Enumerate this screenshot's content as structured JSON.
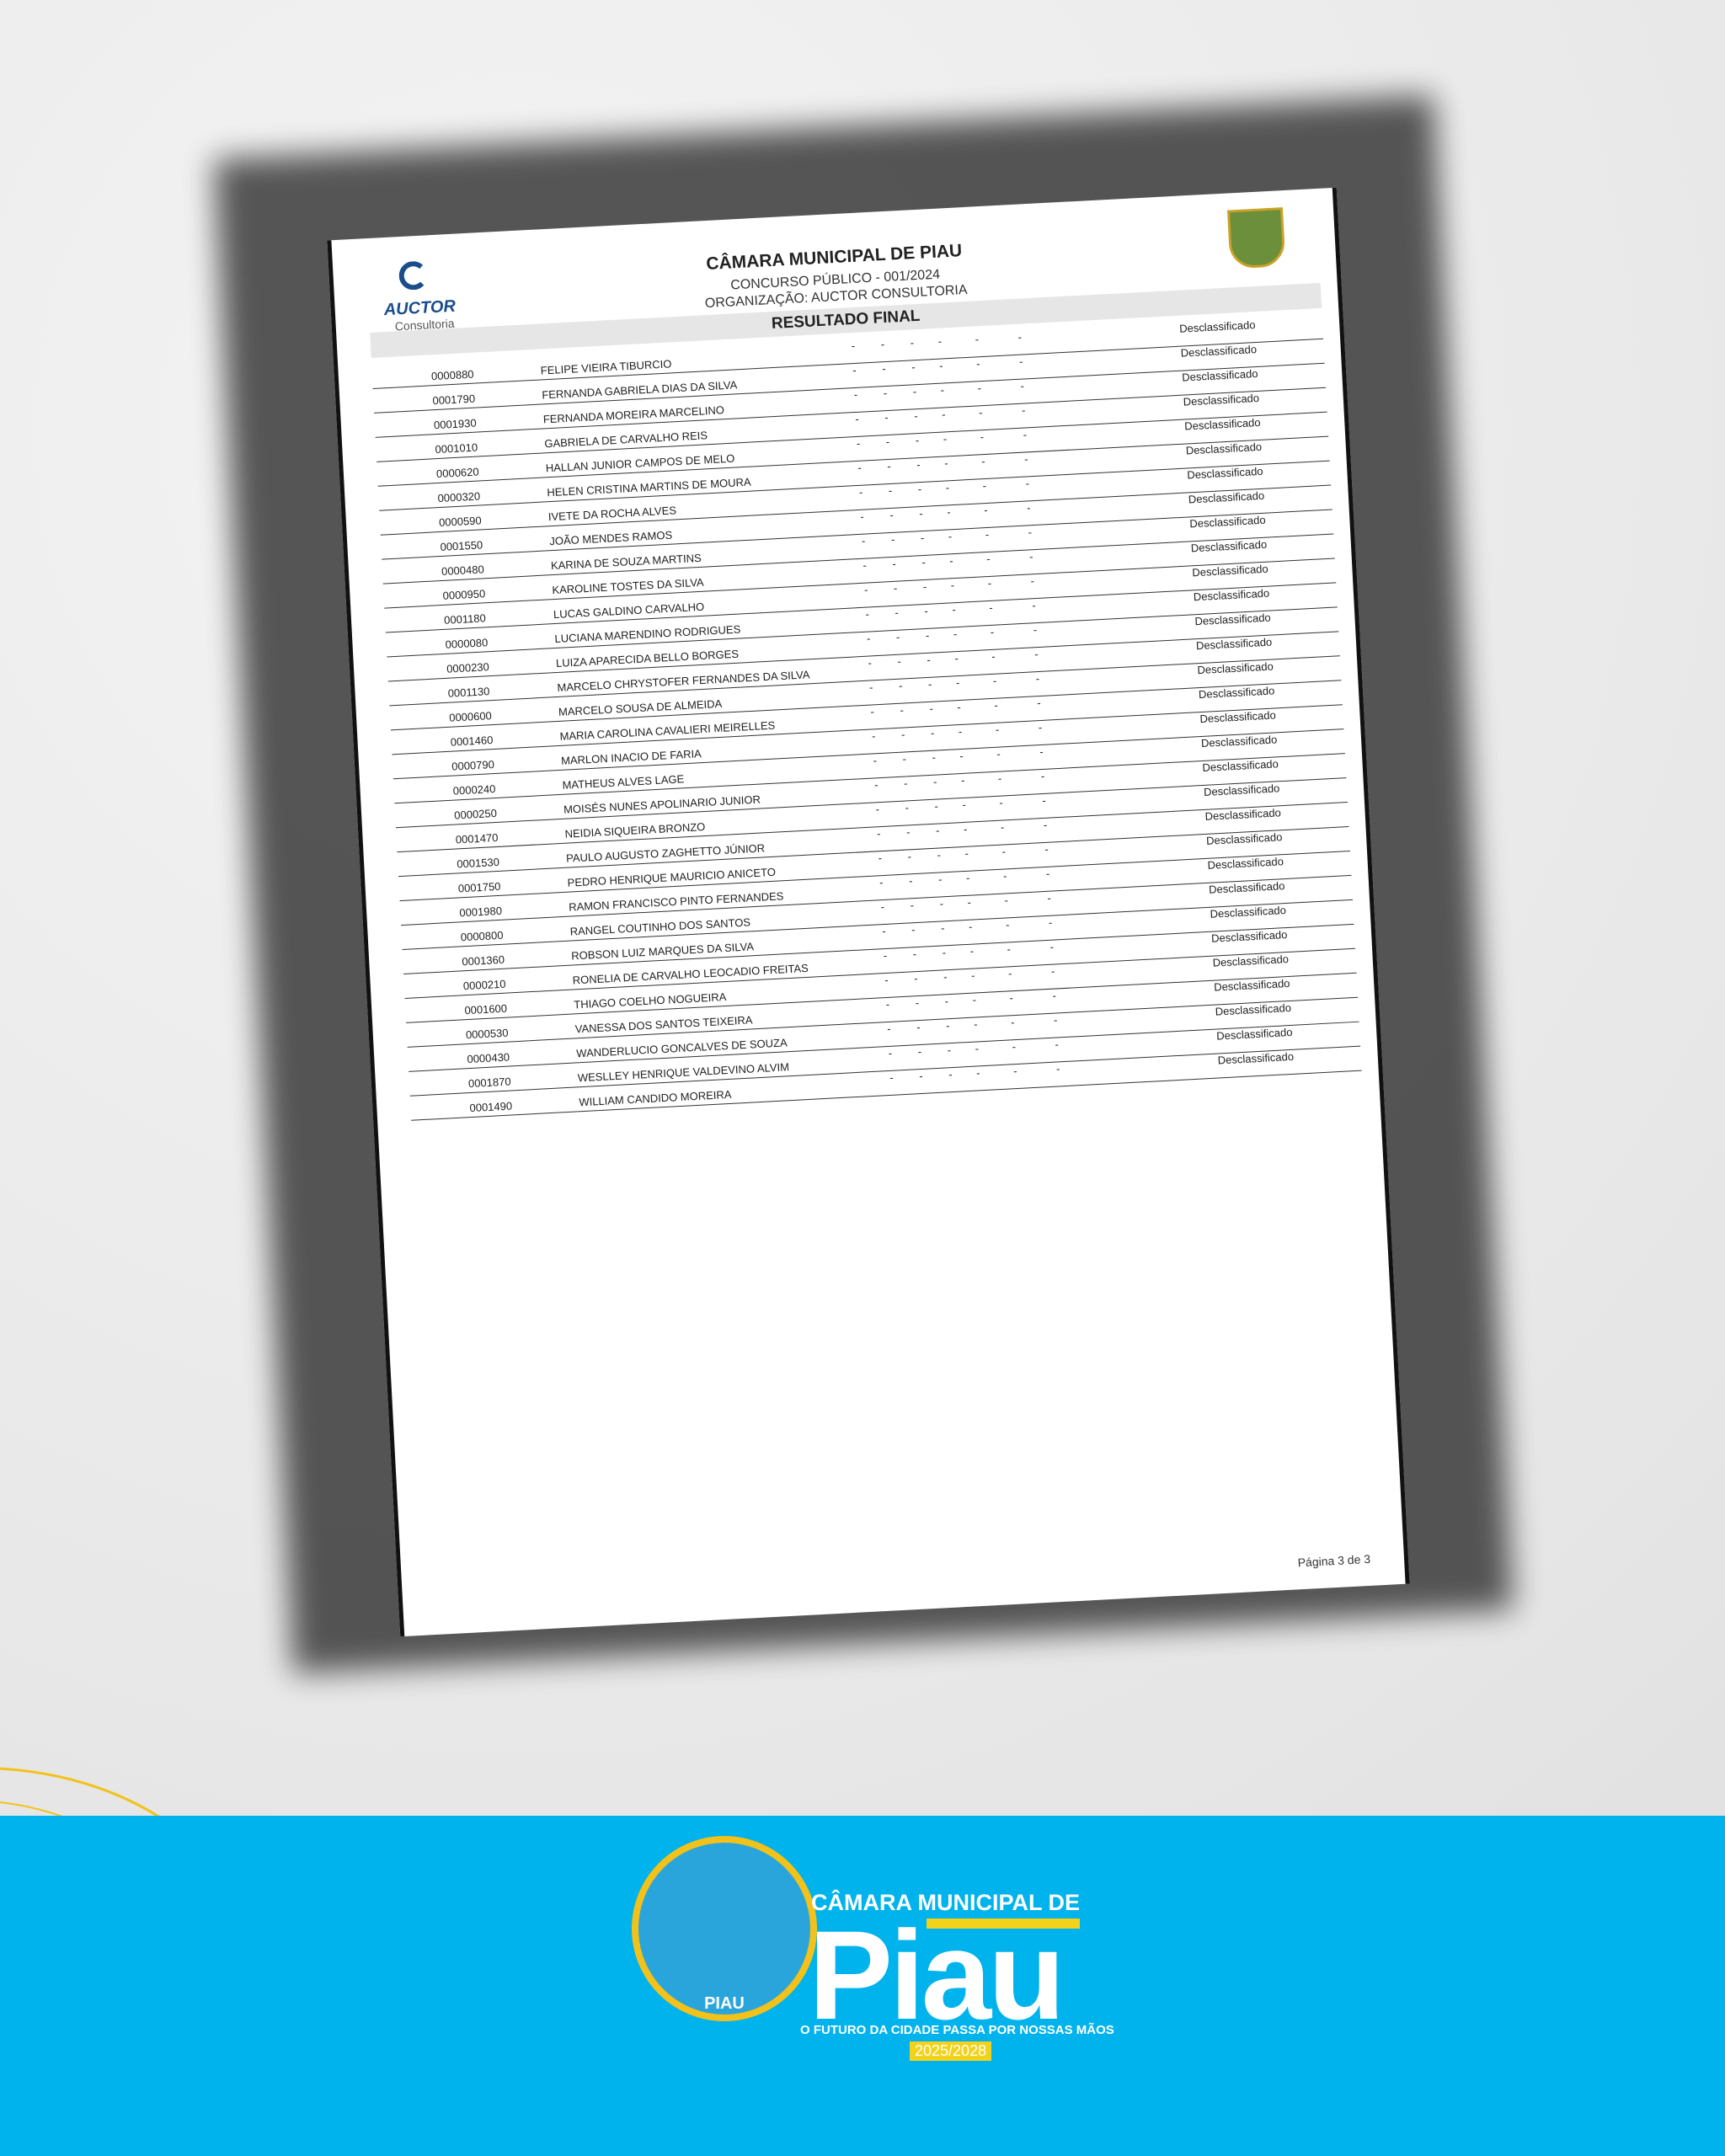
{
  "document": {
    "header": {
      "logo_name": "AUCTOR",
      "logo_sub": "Consultoria",
      "title": "CÂMARA MUNICIPAL DE PIAU",
      "subtitle": "CONCURSO PÚBLICO - 001/2024",
      "organization": "ORGANIZAÇÃO: AUCTOR CONSULTORIA",
      "section": "RESULTADO FINAL"
    },
    "table": {
      "rows": [
        {
          "code": "0000880",
          "name": "FELIPE VIEIRA TIBURCIO",
          "scores": [
            "-",
            "-",
            "-",
            "-",
            "-",
            "-"
          ],
          "status": "Desclassificado"
        },
        {
          "code": "0001790",
          "name": "FERNANDA GABRIELA DIAS DA SILVA",
          "scores": [
            "-",
            "-",
            "-",
            "-",
            "-",
            "-"
          ],
          "status": "Desclassificado"
        },
        {
          "code": "0001930",
          "name": "FERNANDA MOREIRA MARCELINO",
          "scores": [
            "-",
            "-",
            "-",
            "-",
            "-",
            "-"
          ],
          "status": "Desclassificado"
        },
        {
          "code": "0001010",
          "name": "GABRIELA DE CARVALHO REIS",
          "scores": [
            "-",
            "-",
            "-",
            "-",
            "-",
            "-"
          ],
          "status": "Desclassificado"
        },
        {
          "code": "0000620",
          "name": "HALLAN JUNIOR CAMPOS DE MELO",
          "scores": [
            "-",
            "-",
            "-",
            "-",
            "-",
            "-"
          ],
          "status": "Desclassificado"
        },
        {
          "code": "0000320",
          "name": "HELEN CRISTINA MARTINS DE MOURA",
          "scores": [
            "-",
            "-",
            "-",
            "-",
            "-",
            "-"
          ],
          "status": "Desclassificado"
        },
        {
          "code": "0000590",
          "name": "IVETE DA ROCHA ALVES",
          "scores": [
            "-",
            "-",
            "-",
            "-",
            "-",
            "-"
          ],
          "status": "Desclassificado"
        },
        {
          "code": "0001550",
          "name": "JOÃO MENDES RAMOS",
          "scores": [
            "-",
            "-",
            "-",
            "-",
            "-",
            "-"
          ],
          "status": "Desclassificado"
        },
        {
          "code": "0000480",
          "name": "KARINA DE SOUZA MARTINS",
          "scores": [
            "-",
            "-",
            "-",
            "-",
            "-",
            "-"
          ],
          "status": "Desclassificado"
        },
        {
          "code": "0000950",
          "name": "KAROLINE TOSTES DA SILVA",
          "scores": [
            "-",
            "-",
            "-",
            "-",
            "-",
            "-"
          ],
          "status": "Desclassificado"
        },
        {
          "code": "0001180",
          "name": "LUCAS GALDINO CARVALHO",
          "scores": [
            "-",
            "-",
            "-",
            "-",
            "-",
            "-"
          ],
          "status": "Desclassificado"
        },
        {
          "code": "0000080",
          "name": "LUCIANA MARENDINO RODRIGUES",
          "scores": [
            "-",
            "-",
            "-",
            "-",
            "-",
            "-"
          ],
          "status": "Desclassificado"
        },
        {
          "code": "0000230",
          "name": "LUIZA APARECIDA BELLO BORGES",
          "scores": [
            "-",
            "-",
            "-",
            "-",
            "-",
            "-"
          ],
          "status": "Desclassificado"
        },
        {
          "code": "0001130",
          "name": "MARCELO CHRYSTOFER FERNANDES DA SILVA",
          "scores": [
            "-",
            "-",
            "-",
            "-",
            "-",
            "-"
          ],
          "status": "Desclassificado"
        },
        {
          "code": "0000600",
          "name": "MARCELO SOUSA DE ALMEIDA",
          "scores": [
            "-",
            "-",
            "-",
            "-",
            "-",
            "-"
          ],
          "status": "Desclassificado"
        },
        {
          "code": "0001460",
          "name": "MARIA CAROLINA CAVALIERI MEIRELLES",
          "scores": [
            "-",
            "-",
            "-",
            "-",
            "-",
            "-"
          ],
          "status": "Desclassificado"
        },
        {
          "code": "0000790",
          "name": "MARLON INACIO DE FARIA",
          "scores": [
            "-",
            "-",
            "-",
            "-",
            "-",
            "-"
          ],
          "status": "Desclassificado"
        },
        {
          "code": "0000240",
          "name": "MATHEUS ALVES LAGE",
          "scores": [
            "-",
            "-",
            "-",
            "-",
            "-",
            "-"
          ],
          "status": "Desclassificado"
        },
        {
          "code": "0000250",
          "name": "MOISÉS NUNES APOLINARIO JUNIOR",
          "scores": [
            "-",
            "-",
            "-",
            "-",
            "-",
            "-"
          ],
          "status": "Desclassificado"
        },
        {
          "code": "0001470",
          "name": "NEIDIA SIQUEIRA BRONZO",
          "scores": [
            "-",
            "-",
            "-",
            "-",
            "-",
            "-"
          ],
          "status": "Desclassificado"
        },
        {
          "code": "0001530",
          "name": "PAULO AUGUSTO ZAGHETTO JÚNIOR",
          "scores": [
            "-",
            "-",
            "-",
            "-",
            "-",
            "-"
          ],
          "status": "Desclassificado"
        },
        {
          "code": "0001750",
          "name": "PEDRO HENRIQUE MAURICIO ANICETO",
          "scores": [
            "-",
            "-",
            "-",
            "-",
            "-",
            "-"
          ],
          "status": "Desclassificado"
        },
        {
          "code": "0001980",
          "name": "RAMON FRANCISCO PINTO FERNANDES",
          "scores": [
            "-",
            "-",
            "-",
            "-",
            "-",
            "-"
          ],
          "status": "Desclassificado"
        },
        {
          "code": "0000800",
          "name": "RANGEL COUTINHO DOS SANTOS",
          "scores": [
            "-",
            "-",
            "-",
            "-",
            "-",
            "-"
          ],
          "status": "Desclassificado"
        },
        {
          "code": "0001360",
          "name": "ROBSON LUIZ MARQUES DA SILVA",
          "scores": [
            "-",
            "-",
            "-",
            "-",
            "-",
            "-"
          ],
          "status": "Desclassificado"
        },
        {
          "code": "0000210",
          "name": "RONELIA DE CARVALHO LEOCADIO FREITAS",
          "scores": [
            "-",
            "-",
            "-",
            "-",
            "-",
            "-"
          ],
          "status": "Desclassificado"
        },
        {
          "code": "0001600",
          "name": "THIAGO COELHO NOGUEIRA",
          "scores": [
            "-",
            "-",
            "-",
            "-",
            "-",
            "-"
          ],
          "status": "Desclassificado"
        },
        {
          "code": "0000530",
          "name": "VANESSA DOS SANTOS TEIXEIRA",
          "scores": [
            "-",
            "-",
            "-",
            "-",
            "-",
            "-"
          ],
          "status": "Desclassificado"
        },
        {
          "code": "0000430",
          "name": "WANDERLUCIO GONCALVES DE SOUZA",
          "scores": [
            "-",
            "-",
            "-",
            "-",
            "-",
            "-"
          ],
          "status": "Desclassificado"
        },
        {
          "code": "0001870",
          "name": "WESLLEY HENRIQUE VALDEVINO ALVIM",
          "scores": [
            "-",
            "-",
            "-",
            "-",
            "-",
            "-"
          ],
          "status": "Desclassificado"
        },
        {
          "code": "0001490",
          "name": "WILLIAM CANDIDO MOREIRA",
          "scores": [
            "-",
            "-",
            "-",
            "-",
            "-",
            "-"
          ],
          "status": "Desclassificado"
        }
      ]
    },
    "footer": {
      "page": "Página 3 de 3"
    }
  },
  "banner": {
    "seal_label": "PIAU",
    "title": "CÂMARA MUNICIPAL DE",
    "name": "Piau",
    "tagline": "O FUTURO DA CIDADE PASSA POR NOSSAS MÃOS",
    "term": "2025/2028"
  }
}
